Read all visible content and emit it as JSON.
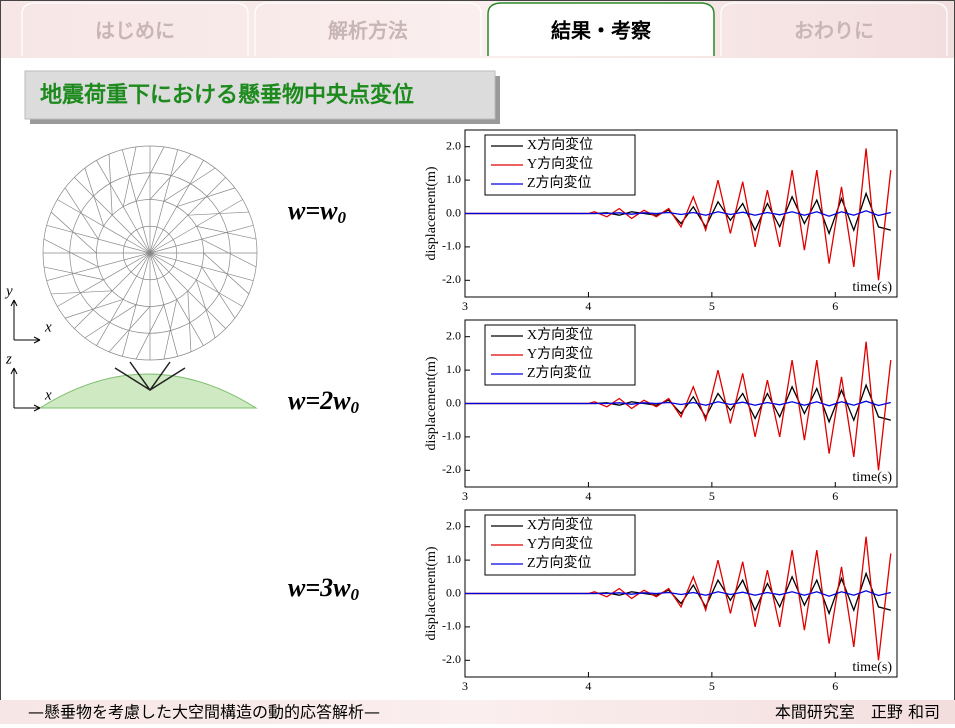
{
  "tabs": [
    "はじめに",
    "解析方法",
    "結果・考察",
    "おわりに"
  ],
  "heading": "地震荷重下における懸垂物中央点変位",
  "axis_labels": {
    "top_y": "y",
    "top_x": "x",
    "side_z": "z",
    "side_x": "x"
  },
  "cases": [
    {
      "text": "w=w",
      "sub": "0"
    },
    {
      "text": "w=2w",
      "sub": "0"
    },
    {
      "text": "w=3w",
      "sub": "0"
    }
  ],
  "footer": {
    "left": "—懸垂物を考慮した大空間構造の動的応答解析—",
    "right": "本間研究室　正野 和司"
  },
  "chart_data": [
    {
      "type": "line",
      "y_label": "displacement(m)",
      "x_label": "time(s)",
      "x": [
        3,
        3.5,
        4,
        4.05,
        4.15,
        4.25,
        4.35,
        4.45,
        4.55,
        4.65,
        4.75,
        4.85,
        4.95,
        5.05,
        5.15,
        5.25,
        5.35,
        5.45,
        5.55,
        5.65,
        5.75,
        5.85,
        5.95,
        6.05,
        6.15,
        6.25,
        6.35,
        6.45
      ],
      "series": [
        {
          "name": "X方向変位",
          "color": "#000000",
          "values": [
            0,
            0,
            0,
            0,
            0.02,
            -0.05,
            0.05,
            0,
            -0.05,
            0.1,
            -0.3,
            0.2,
            -0.4,
            0.35,
            -0.2,
            0.3,
            -0.5,
            0.3,
            -0.4,
            0.5,
            -0.3,
            0.4,
            -0.6,
            0.45,
            -0.5,
            0.6,
            -0.4,
            -0.5
          ]
        },
        {
          "name": "Y方向変位",
          "color": "#e00000",
          "values": [
            0,
            0,
            0,
            0.05,
            -0.1,
            0.15,
            -0.15,
            0.1,
            -0.1,
            0.15,
            -0.4,
            0.5,
            -0.5,
            1.0,
            -0.6,
            0.95,
            -1.0,
            0.7,
            -1.0,
            1.3,
            -1.1,
            1.3,
            -1.5,
            0.8,
            -1.6,
            1.95,
            -2.0,
            1.3
          ]
        },
        {
          "name": "Z方向変位",
          "color": "#0000e0",
          "values": [
            0,
            0,
            0,
            0,
            0,
            0.02,
            -0.02,
            0.02,
            0,
            0.03,
            -0.03,
            0.03,
            -0.05,
            0.05,
            -0.03,
            0.04,
            -0.05,
            0.03,
            -0.04,
            0.05,
            -0.05,
            0.05,
            -0.08,
            0.05,
            -0.05,
            0.08,
            -0.06,
            0.03
          ]
        }
      ],
      "xlim": [
        3,
        6.5
      ],
      "xticks": [
        3,
        4,
        5,
        6
      ],
      "ylim": [
        -2.5,
        2.5
      ],
      "yticks": [
        {
          "value": -2,
          "label": "-2.0"
        },
        {
          "value": -1,
          "label": "-1.0"
        },
        {
          "value": 0,
          "label": "0.0"
        },
        {
          "value": 1,
          "label": "1.0"
        },
        {
          "value": 2,
          "label": "2.0"
        }
      ]
    },
    {
      "type": "line",
      "y_label": "displacement(m)",
      "x_label": "time(s)",
      "x": [
        3,
        3.5,
        4,
        4.05,
        4.15,
        4.25,
        4.35,
        4.45,
        4.55,
        4.65,
        4.75,
        4.85,
        4.95,
        5.05,
        5.15,
        5.25,
        5.35,
        5.45,
        5.55,
        5.65,
        5.75,
        5.85,
        5.95,
        6.05,
        6.15,
        6.25,
        6.35,
        6.45
      ],
      "series": [
        {
          "name": "X方向変位",
          "color": "#000000",
          "values": [
            0,
            0,
            0,
            0,
            0.02,
            -0.05,
            0.05,
            0,
            -0.05,
            0.1,
            -0.3,
            0.2,
            -0.4,
            0.3,
            -0.2,
            0.3,
            -0.45,
            0.3,
            -0.4,
            0.5,
            -0.3,
            0.45,
            -0.55,
            0.4,
            -0.5,
            0.55,
            -0.4,
            -0.5
          ]
        },
        {
          "name": "Y方向変位",
          "color": "#e00000",
          "values": [
            0,
            0,
            0,
            0.05,
            -0.1,
            0.15,
            -0.15,
            0.1,
            -0.1,
            0.15,
            -0.4,
            0.5,
            -0.5,
            1.0,
            -0.6,
            0.9,
            -1.0,
            0.7,
            -1.0,
            1.3,
            -1.1,
            1.3,
            -1.5,
            0.8,
            -1.6,
            1.85,
            -2.0,
            1.3
          ]
        },
        {
          "name": "Z方向変位",
          "color": "#0000e0",
          "values": [
            0,
            0,
            0,
            0,
            0,
            0.02,
            -0.02,
            0.02,
            0,
            0.03,
            -0.03,
            0.03,
            -0.05,
            0.05,
            -0.03,
            0.04,
            -0.05,
            0.03,
            -0.04,
            0.05,
            -0.05,
            0.05,
            -0.07,
            0.05,
            -0.05,
            0.07,
            -0.06,
            0.03
          ]
        }
      ],
      "xlim": [
        3,
        6.5
      ],
      "xticks": [
        3,
        4,
        5,
        6
      ],
      "ylim": [
        -2.5,
        2.5
      ],
      "yticks": [
        {
          "value": -2,
          "label": "-2.0"
        },
        {
          "value": -1,
          "label": "-1.0"
        },
        {
          "value": 0,
          "label": "0.0"
        },
        {
          "value": 1,
          "label": "1.0"
        },
        {
          "value": 2,
          "label": "2.0"
        }
      ]
    },
    {
      "type": "line",
      "y_label": "displacement(m)",
      "x_label": "time(s)",
      "x": [
        3,
        3.5,
        4,
        4.05,
        4.15,
        4.25,
        4.35,
        4.45,
        4.55,
        4.65,
        4.75,
        4.85,
        4.95,
        5.05,
        5.15,
        5.25,
        5.35,
        5.45,
        5.55,
        5.65,
        5.75,
        5.85,
        5.95,
        6.05,
        6.15,
        6.25,
        6.35,
        6.45
      ],
      "series": [
        {
          "name": "X方向変位",
          "color": "#000000",
          "values": [
            0,
            0,
            0,
            0,
            0.02,
            -0.05,
            0.05,
            0,
            -0.05,
            0.1,
            -0.3,
            0.25,
            -0.4,
            0.4,
            -0.2,
            0.4,
            -0.5,
            0.3,
            -0.4,
            0.5,
            -0.35,
            0.4,
            -0.6,
            0.45,
            -0.5,
            0.6,
            -0.4,
            -0.5
          ]
        },
        {
          "name": "Y方向変位",
          "color": "#e00000",
          "values": [
            0,
            0,
            0,
            0.05,
            -0.1,
            0.15,
            -0.15,
            0.1,
            -0.1,
            0.15,
            -0.4,
            0.5,
            -0.5,
            1.0,
            -0.6,
            0.95,
            -1.0,
            0.7,
            -1.0,
            1.3,
            -1.1,
            1.3,
            -1.5,
            0.8,
            -1.6,
            1.7,
            -2.0,
            1.2
          ]
        },
        {
          "name": "Z方向変位",
          "color": "#0000e0",
          "values": [
            0,
            0,
            0,
            0,
            0,
            0.02,
            -0.02,
            0.02,
            0,
            0.03,
            -0.03,
            0.03,
            -0.05,
            0.05,
            -0.03,
            0.04,
            -0.05,
            0.03,
            -0.04,
            0.05,
            -0.05,
            0.05,
            -0.08,
            0.05,
            -0.05,
            0.08,
            -0.06,
            0.03
          ]
        }
      ],
      "xlim": [
        3,
        6.5
      ],
      "xticks": [
        3,
        4,
        5,
        6
      ],
      "ylim": [
        -2.5,
        2.5
      ],
      "yticks": [
        {
          "value": -2,
          "label": "-2.0"
        },
        {
          "value": -1,
          "label": "-1.0"
        },
        {
          "value": 0,
          "label": "0.0"
        },
        {
          "value": 1,
          "label": "1.0"
        },
        {
          "value": 2,
          "label": "2.0"
        }
      ]
    }
  ]
}
